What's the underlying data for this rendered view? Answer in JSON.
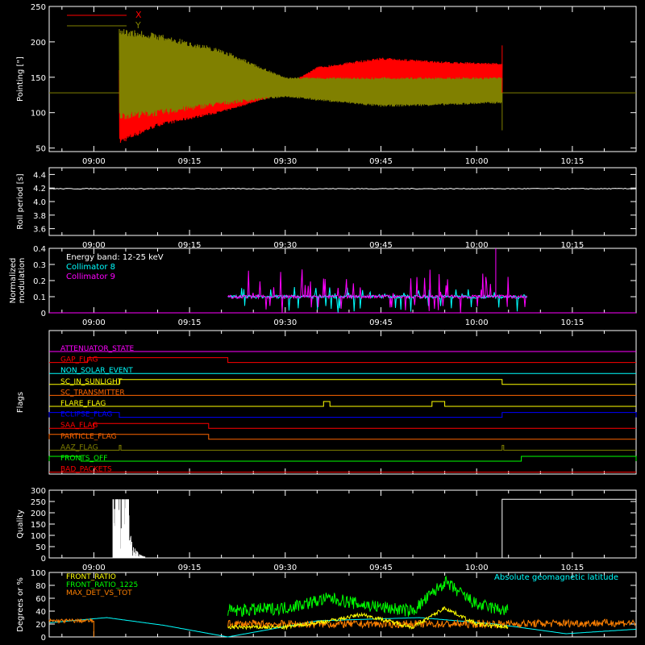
{
  "chart_data": [
    {
      "type": "line",
      "ylabel": "Pointing [\"]",
      "ylim": [
        45,
        250
      ],
      "yticks": [
        50,
        100,
        150,
        200,
        250
      ],
      "legend": [
        {
          "name": "X",
          "color": "#ff0000"
        },
        {
          "name": "Y",
          "color": "#808000"
        }
      ],
      "series": [
        {
          "name": "X",
          "color": "#ff0000",
          "x_range": [
            "09:04",
            "10:04"
          ],
          "x": [
            "09:04",
            "09:10",
            "09:20",
            "09:30",
            "09:35",
            "09:45",
            "09:55",
            "10:04"
          ],
          "min": [
            55,
            80,
            100,
            128,
            128,
            135,
            140,
            143
          ],
          "max": [
            160,
            145,
            138,
            138,
            165,
            178,
            172,
            170
          ]
        },
        {
          "name": "Y",
          "color": "#808000",
          "x_range": [
            "09:04",
            "10:04"
          ],
          "x": [
            "09:04",
            "09:10",
            "09:20",
            "09:30",
            "09:35",
            "09:45",
            "09:55",
            "10:04"
          ],
          "min": [
            90,
            95,
            110,
            122,
            117,
            108,
            110,
            113
          ],
          "max": [
            220,
            212,
            190,
            150,
            150,
            150,
            150,
            150
          ]
        }
      ],
      "baseline": {
        "value": 128,
        "color": "#808000"
      }
    },
    {
      "type": "line",
      "ylabel": "Roll period [s]",
      "ylim": [
        3.5,
        4.5
      ],
      "yticks": [
        "3.6",
        "3.8",
        "4.0",
        "4.2",
        "4.4"
      ],
      "series": [
        {
          "name": "roll",
          "color": "#ffffff",
          "x": [
            "08:53",
            "10:25"
          ],
          "y": [
            4.19,
            4.19
          ]
        }
      ]
    },
    {
      "type": "line",
      "ylabel": "Normalized modulation",
      "ylim": [
        0,
        0.4
      ],
      "yticks": [
        "0",
        "0.1",
        "0.2",
        "0.3",
        "0.4"
      ],
      "annotation": "Energy band: 12-25 keV",
      "series": [
        {
          "name": "Collimator 8",
          "color": "#00ffff",
          "active": [
            "09:21",
            "10:08"
          ],
          "baseline": 0.1,
          "peak": 0.2
        },
        {
          "name": "Collimator 9",
          "color": "#ff00ff",
          "active": [
            "09:21",
            "10:08"
          ],
          "baseline": 0.1,
          "peak": 0.4
        }
      ]
    },
    {
      "type": "line",
      "ylabel": "Flags",
      "flags": [
        {
          "name": "ATTENUATOR_STATE",
          "color": "#ff00ff",
          "high": []
        },
        {
          "name": "GAP_FLAG",
          "color": "#ff0000",
          "high": [
            [
              "08:59",
              "09:21"
            ]
          ]
        },
        {
          "name": "NON_SOLAR_EVENT",
          "color": "#00ffff",
          "high": []
        },
        {
          "name": "SC_IN_SUNLIGHT",
          "color": "#ffff00",
          "high": [
            [
              "09:04",
              "10:04"
            ]
          ]
        },
        {
          "name": "SC_TRANSMITTER",
          "color": "#ff6600",
          "high": []
        },
        {
          "name": "FLARE_FLAG",
          "color": "#ffff00",
          "high": [
            [
              "09:36",
              "09:37"
            ],
            [
              "09:53",
              "09:55"
            ]
          ]
        },
        {
          "name": "ECLIPSE_FLAG",
          "color": "#0000ff",
          "high": [
            [
              "08:53",
              "09:04"
            ],
            [
              "10:04",
              "10:25"
            ]
          ]
        },
        {
          "name": "SAA_FLAG",
          "color": "#ff0000",
          "high": [
            [
              "09:00",
              "09:18"
            ]
          ]
        },
        {
          "name": "PARTICLE_FLAG",
          "color": "#ff6600",
          "high": [
            [
              "08:53",
              "09:18"
            ]
          ]
        },
        {
          "name": "AAZ_FLAG",
          "color": "#808000",
          "high": [
            [
              "09:04",
              "09:04"
            ],
            [
              "10:04",
              "10:04"
            ]
          ]
        },
        {
          "name": "FRONTS_OFF",
          "color": "#00ff00",
          "high": [
            [
              "08:53",
              "08:58"
            ],
            [
              "10:07",
              "10:25"
            ]
          ]
        },
        {
          "name": "BAD_PACKETS",
          "color": "#ff0000",
          "high": []
        }
      ]
    },
    {
      "type": "line",
      "ylabel": "Quality",
      "ylim": [
        0,
        300
      ],
      "yticks": [
        0,
        50,
        100,
        150,
        200,
        250,
        300
      ],
      "series": [
        {
          "name": "quality",
          "color": "#ffffff",
          "x": [
            "09:03",
            "09:05",
            "09:08",
            "10:04",
            "10:25"
          ],
          "y": [
            260,
            20,
            0,
            260,
            260
          ]
        }
      ]
    },
    {
      "type": "line",
      "ylabel": "Degrees or %",
      "ylim": [
        0,
        100
      ],
      "yticks": [
        0,
        20,
        40,
        60,
        80,
        100
      ],
      "legend": [
        {
          "name": "FRONT_RATIO",
          "color": "#ffff00"
        },
        {
          "name": "FRONT_RATIO_1225",
          "color": "#00ff00"
        },
        {
          "name": "MAX_DET_VS_TOT",
          "color": "#ff8000"
        }
      ],
      "annotation": "Absolute geomagnetic latitude",
      "annotation_color": "#00ffff",
      "series": [
        {
          "name": "FRONT_RATIO",
          "color": "#ffff00",
          "x": [
            "09:21",
            "09:30",
            "09:37",
            "09:42",
            "09:50",
            "09:55",
            "10:00",
            "10:05"
          ],
          "y": [
            15,
            15,
            25,
            35,
            15,
            45,
            20,
            15
          ]
        },
        {
          "name": "FRONT_RATIO_1225",
          "color": "#00ff00",
          "x": [
            "09:21",
            "09:30",
            "09:37",
            "09:42",
            "09:50",
            "09:55",
            "10:00",
            "10:05"
          ],
          "y": [
            40,
            45,
            60,
            50,
            40,
            85,
            50,
            40
          ]
        },
        {
          "name": "MAX_DET_VS_TOT",
          "color": "#ff8000",
          "x": [
            "08:53",
            "09:00",
            "09:00",
            "09:21",
            "10:00",
            "10:25"
          ],
          "y": [
            25,
            25,
            0,
            20,
            20,
            22
          ]
        },
        {
          "name": "Absolute geomagnetic latitude",
          "color": "#00ffff",
          "x": [
            "08:53",
            "09:02",
            "09:11",
            "09:21",
            "09:35",
            "09:51",
            "10:03",
            "10:14",
            "10:25"
          ],
          "y": [
            22,
            30,
            18,
            0,
            25,
            30,
            20,
            5,
            12
          ]
        }
      ]
    }
  ],
  "xaxis": {
    "ticks": [
      "09:00",
      "09:15",
      "09:30",
      "09:45",
      "10:00",
      "10:15"
    ],
    "range": [
      "08:53",
      "10:25"
    ]
  },
  "colors": {
    "axes": "#ffffff",
    "background": "#000000"
  }
}
